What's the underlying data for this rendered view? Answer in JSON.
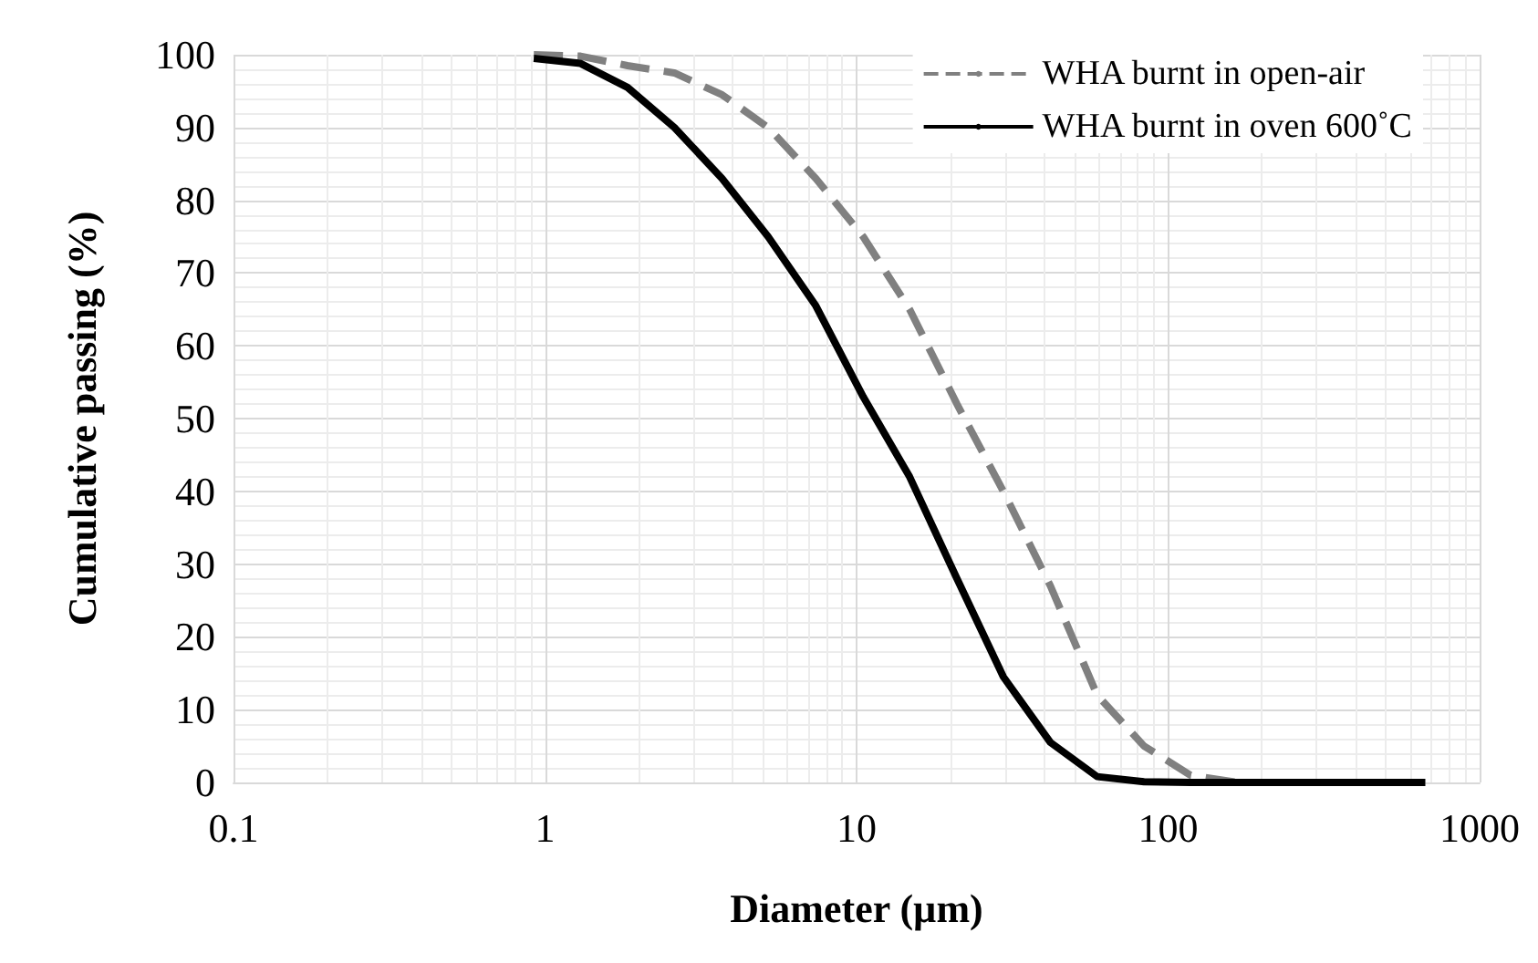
{
  "chart_data": {
    "type": "line",
    "xlabel": "Diameter (µm)",
    "ylabel": "Cumulative passing (%)",
    "log": "x",
    "grid": true,
    "legend": "top right",
    "marker": "none",
    "xlim": [
      0.1,
      1000
    ],
    "xticks": [
      0.1,
      1,
      10,
      100,
      1000
    ],
    "ylim": [
      0,
      100
    ],
    "yticks": [
      0,
      10,
      20,
      30,
      40,
      50,
      60,
      70,
      80,
      90,
      100
    ],
    "x": [
      0.92,
      1.3,
      1.84,
      2.6,
      3.7,
      5.2,
      7.4,
      10.5,
      14.8,
      21,
      29.6,
      41.9,
      59.2,
      83.7,
      118,
      167,
      237,
      335,
      473,
      669
    ],
    "series": [
      {
        "name": "WHA burnt in open-air",
        "color": "#808080",
        "line_style": "dashed",
        "values": [
          100,
          99.8,
          98.5,
          97.5,
          94.5,
          90,
          83,
          75,
          65,
          52,
          40,
          27,
          12,
          5,
          1,
          0,
          0,
          0,
          0,
          0
        ]
      },
      {
        "name": "WHA burnt in oven 600˚C",
        "color": "#000000",
        "line_style": "solid",
        "values": [
          99.5,
          98.8,
          95.5,
          90,
          83,
          75,
          65.5,
          53,
          42,
          28,
          14.5,
          5.5,
          0.8,
          0.1,
          0,
          0,
          0,
          0,
          0,
          0
        ]
      }
    ]
  }
}
